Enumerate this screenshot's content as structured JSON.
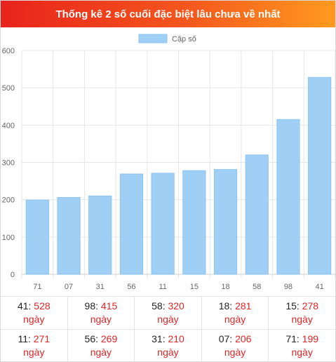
{
  "header": {
    "title": "Thống kê 2 số cuối đặc biệt lâu chưa về nhất"
  },
  "chart_data": {
    "type": "bar",
    "categories": [
      "71",
      "07",
      "31",
      "56",
      "11",
      "15",
      "18",
      "58",
      "98",
      "41"
    ],
    "series": [
      {
        "name": "Cặp số",
        "values": [
          199,
          206,
          210,
          269,
          271,
          278,
          281,
          320,
          415,
          528
        ]
      }
    ],
    "yticks": [
      0,
      100,
      200,
      300,
      400,
      500,
      600
    ],
    "ylim": [
      0,
      600
    ],
    "grid": true,
    "legend": "top-center",
    "colors": {
      "bar": "#a0cff5",
      "bar_border": "#8cc4f2",
      "grid": "#e6e6e6",
      "axis_text": "#666666"
    }
  },
  "table": {
    "unit": "ngày",
    "rows": [
      [
        {
          "num": "41",
          "days": "528"
        },
        {
          "num": "98",
          "days": "415"
        },
        {
          "num": "58",
          "days": "320"
        },
        {
          "num": "18",
          "days": "281"
        },
        {
          "num": "15",
          "days": "278"
        }
      ],
      [
        {
          "num": "11",
          "days": "271"
        },
        {
          "num": "56",
          "days": "269"
        },
        {
          "num": "31",
          "days": "210"
        },
        {
          "num": "07",
          "days": "206"
        },
        {
          "num": "71",
          "days": "199"
        }
      ]
    ]
  }
}
